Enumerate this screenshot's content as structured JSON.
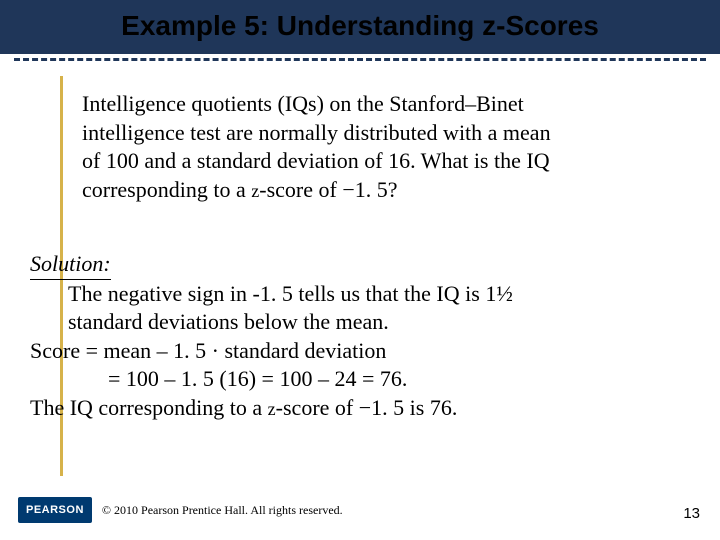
{
  "title": "Example 5: Understanding z-Scores",
  "problem": {
    "line1": "Intelligence quotients (IQs) on the Stanford–Binet",
    "line2": "intelligence test are normally distributed with a mean",
    "line3": "of 100 and a standard deviation of 16. What is the IQ",
    "line4a": "corresponding to a ",
    "line4b": "-score of −1. 5?"
  },
  "solution": {
    "label": "Solution:",
    "line1": "The negative sign in -1. 5 tells us that the IQ is 1½",
    "line2": "standard deviations below the mean.",
    "line3": "Score = mean – 1. 5 · standard deviation",
    "line4": "= 100 – 1. 5 (16) = 100 – 24 = 76.",
    "line5a": "The IQ corresponding to a ",
    "line5b": "-score of −1. 5 is 76."
  },
  "footer": {
    "logo": "PEARSON",
    "copyright": "© 2010 Pearson Prentice Hall. All rights reserved.",
    "page": "13"
  },
  "colors": {
    "navy": "#1f3659",
    "gold": "#d6b24a",
    "logo_bg": "#003a70"
  }
}
